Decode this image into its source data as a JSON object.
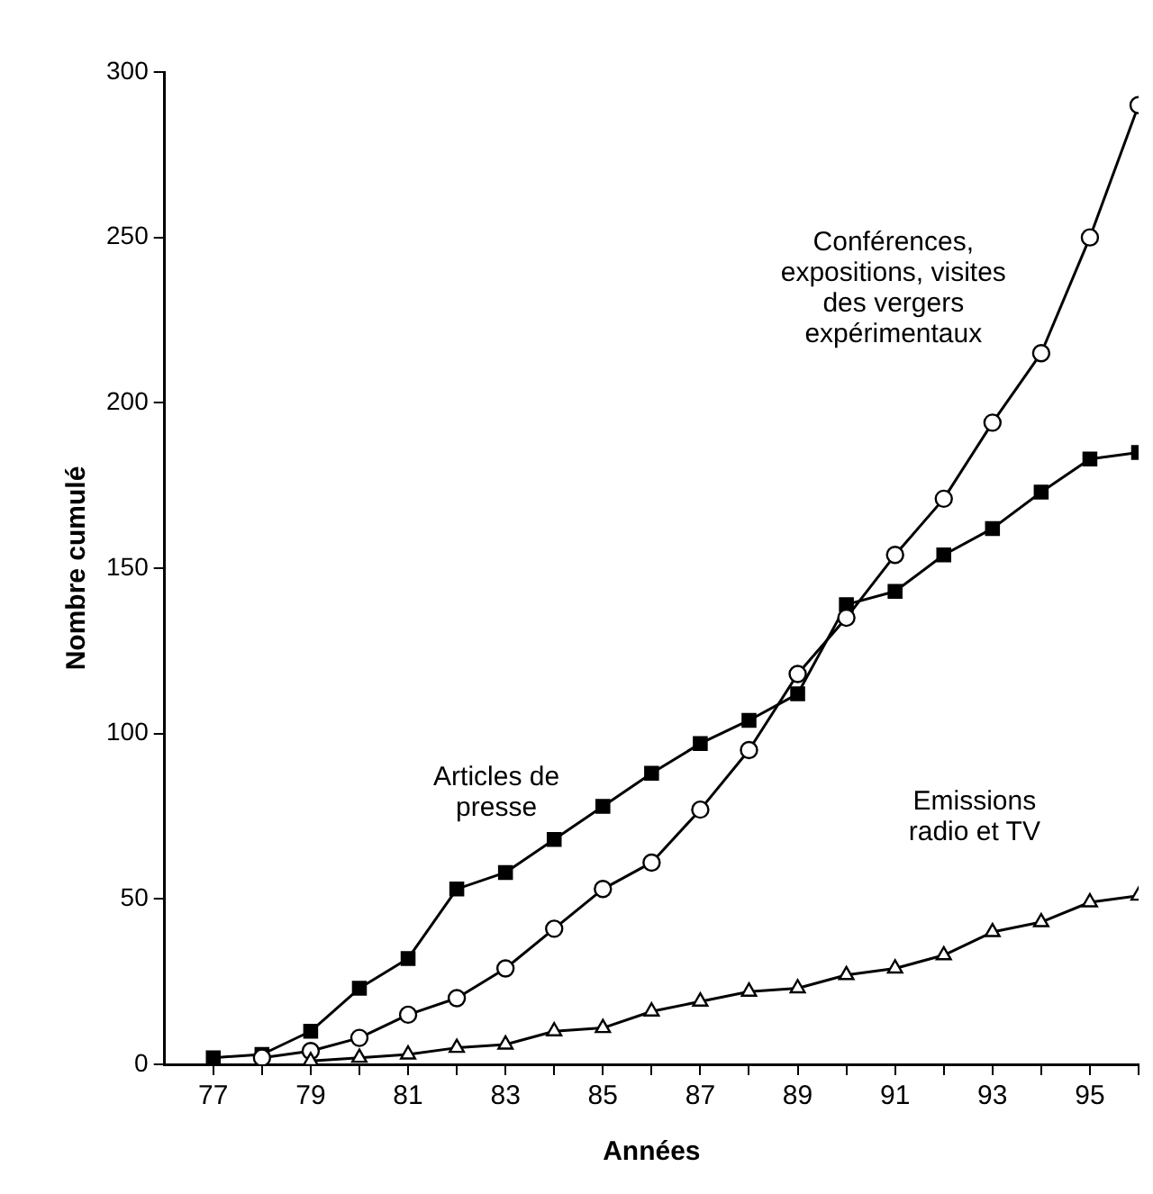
{
  "chart_data": {
    "type": "line",
    "xlabel": "Années",
    "ylabel": "Nombre cumulé",
    "xlim": [
      76,
      96
    ],
    "xticks": [
      {
        "value": 77,
        "label": "77"
      },
      {
        "value": 78,
        "label": null
      },
      {
        "value": 79,
        "label": "79"
      },
      {
        "value": 80,
        "label": null
      },
      {
        "value": 81,
        "label": "81"
      },
      {
        "value": 82,
        "label": null
      },
      {
        "value": 83,
        "label": "83"
      },
      {
        "value": 84,
        "label": null
      },
      {
        "value": 85,
        "label": "85"
      },
      {
        "value": 86,
        "label": null
      },
      {
        "value": 87,
        "label": "87"
      },
      {
        "value": 88,
        "label": null
      },
      {
        "value": 89,
        "label": "89"
      },
      {
        "value": 90,
        "label": null
      },
      {
        "value": 91,
        "label": "91"
      },
      {
        "value": 92,
        "label": null
      },
      {
        "value": 93,
        "label": "93"
      },
      {
        "value": 94,
        "label": null
      },
      {
        "value": 95,
        "label": "95"
      },
      {
        "value": 96,
        "label": null
      }
    ],
    "ylim": [
      0,
      300
    ],
    "yticks": [
      0,
      50,
      100,
      150,
      200,
      250,
      300
    ],
    "grid": false,
    "legend": false,
    "line_style": "solid",
    "series": [
      {
        "name": "Articles de presse",
        "color": "#000000",
        "marker": "square",
        "x": [
          77,
          78,
          79,
          80,
          81,
          82,
          83,
          84,
          85,
          86,
          87,
          88,
          89,
          90,
          91,
          92,
          93,
          94,
          95,
          96
        ],
        "values": [
          2,
          3,
          10,
          23,
          32,
          53,
          58,
          68,
          78,
          88,
          97,
          104,
          112,
          139,
          143,
          154,
          162,
          173,
          183,
          185
        ]
      },
      {
        "name": "Conférences, expositions, visites des vergers expérimentaux",
        "color": "#000000",
        "marker": "circle",
        "x": [
          78,
          79,
          80,
          81,
          82,
          83,
          84,
          85,
          86,
          87,
          88,
          89,
          90,
          91,
          92,
          93,
          94,
          95,
          96
        ],
        "values": [
          2,
          4,
          8,
          15,
          20,
          29,
          41,
          53,
          61,
          77,
          95,
          118,
          135,
          154,
          171,
          194,
          215,
          250,
          290
        ]
      },
      {
        "name": "Emissions radio et TV",
        "color": "#000000",
        "marker": "triangle",
        "x": [
          79,
          80,
          81,
          82,
          83,
          84,
          85,
          86,
          87,
          88,
          89,
          90,
          91,
          92,
          93,
          94,
          95,
          96
        ],
        "values": [
          1,
          2,
          3,
          5,
          6,
          10,
          11,
          16,
          19,
          22,
          23,
          27,
          29,
          33,
          40,
          43,
          49,
          51
        ]
      }
    ]
  }
}
